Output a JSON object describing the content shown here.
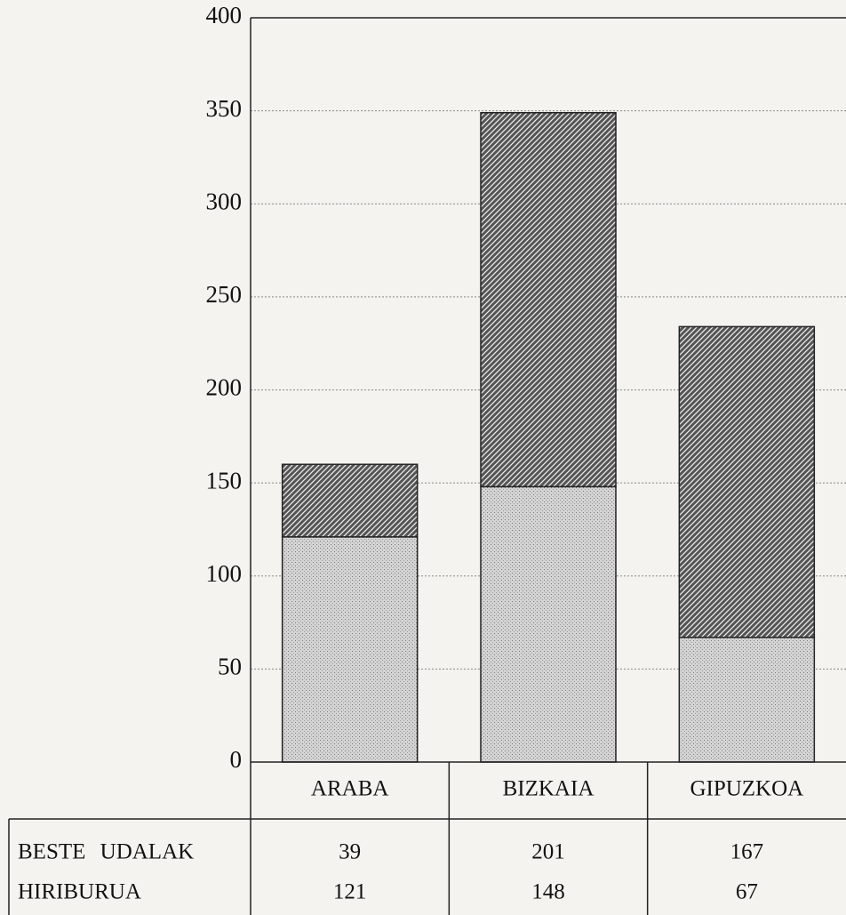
{
  "chart_data": {
    "type": "stacked_bar",
    "categories": [
      "ARABA",
      "BIZKAIA",
      "GIPUZKOA"
    ],
    "series": [
      {
        "name": "HIRIBURUA",
        "color": "#d4d4d4",
        "values": [
          121,
          148,
          67
        ]
      },
      {
        "name": "BESTE UDALAK",
        "color": "#555555",
        "values": [
          39,
          201,
          167
        ]
      }
    ],
    "ylim": [
      0,
      400
    ],
    "yticks": [
      0,
      50,
      100,
      150,
      200,
      250,
      300,
      350,
      400
    ],
    "grid": true
  }
}
